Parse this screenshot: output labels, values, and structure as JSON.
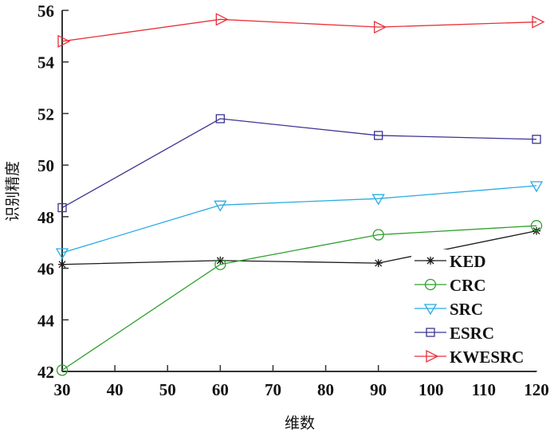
{
  "chart_data": {
    "type": "line",
    "title": "",
    "xlabel": "维数",
    "ylabel": "识别精度",
    "xlim": [
      30,
      120
    ],
    "ylim": [
      42,
      56
    ],
    "xticks": [
      30,
      40,
      50,
      60,
      70,
      80,
      90,
      100,
      110,
      120
    ],
    "yticks": [
      42,
      44,
      46,
      48,
      50,
      52,
      54,
      56
    ],
    "x": [
      30,
      60,
      90,
      120
    ],
    "legend_position": "lower-right",
    "grid": false,
    "series": [
      {
        "name": "KED",
        "marker": "asterisk",
        "color": "#1a1a1a",
        "values": [
          46.15,
          46.3,
          46.2,
          47.45
        ]
      },
      {
        "name": "CRC",
        "marker": "circle",
        "color": "#2ca02c",
        "values": [
          42.05,
          46.15,
          47.3,
          47.65
        ]
      },
      {
        "name": "SRC",
        "marker": "triangle-down",
        "color": "#29abe2",
        "values": [
          46.6,
          48.45,
          48.7,
          49.2
        ]
      },
      {
        "name": "ESRC",
        "marker": "square",
        "color": "#3b3490",
        "values": [
          48.35,
          51.8,
          51.15,
          51.0
        ]
      },
      {
        "name": "KWESRC",
        "marker": "triangle-right",
        "color": "#e8313a",
        "values": [
          54.8,
          55.65,
          55.35,
          55.55
        ]
      }
    ]
  }
}
